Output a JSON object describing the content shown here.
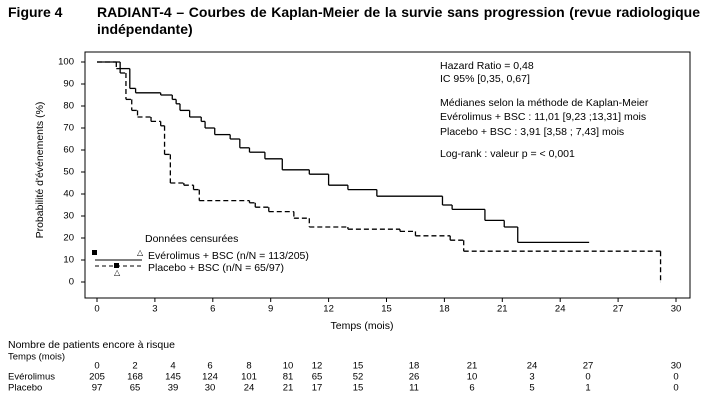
{
  "chart_data": {
    "type": "km",
    "figure_label": "Figure 4",
    "title": "RADIANT-4 – Courbes de Kaplan-Meier de la survie sans progression (revue radiologique indépendante)",
    "y_label": "Probabilité d'événements (%)",
    "x_label": "Temps (mois)",
    "xlim": [
      0,
      30
    ],
    "ylim": [
      0,
      100
    ],
    "xticks": [
      0,
      3,
      6,
      9,
      12,
      15,
      18,
      21,
      24,
      27,
      30
    ],
    "yticks": [
      0,
      10,
      20,
      30,
      40,
      50,
      60,
      70,
      80,
      90,
      100
    ],
    "annotations": [
      "Hazard Ratio = 0,48",
      "IC 95% [0,35, 0,67]",
      "Médianes selon la méthode de Kaplan-Meier",
      "Evérolimus + BSC : 11,01 [9,23 ;13,31] mois",
      "Placebo + BSC : 3,91 [3,58 ; 7,43] mois",
      "Log-rank : valeur p =  < 0,001"
    ],
    "legend_title": "Données censurées",
    "series": [
      {
        "name": "Evérolimus + BSC (n/N = 113/205)",
        "color": "#000000",
        "dash": false,
        "x": [
          0,
          1.2,
          1.7,
          2,
          3.3,
          3.9,
          4.1,
          4.3,
          4.8,
          5.4,
          5.6,
          6.1,
          6.9,
          7.4,
          7.9,
          8.7,
          9.6,
          11,
          12,
          13,
          14.5,
          17.9,
          18.4,
          20.1,
          21.1,
          21.8,
          25.5
        ],
        "values": [
          100,
          97,
          88,
          86,
          85,
          83,
          81,
          78,
          75,
          73,
          70,
          67,
          65,
          61,
          59,
          56,
          51,
          49,
          44,
          42,
          39,
          35,
          33,
          28,
          25,
          18,
          18
        ]
      },
      {
        "name": "Placebo + BSC (n/N = 65/97)",
        "color": "#000000",
        "dash": true,
        "x": [
          0,
          1,
          1.2,
          1.5,
          1.8,
          2.1,
          2.8,
          3.3,
          3.5,
          3.8,
          4.5,
          5,
          5.3,
          7.9,
          8.2,
          8.9,
          10.2,
          11,
          13,
          15.7,
          16.5,
          18.3,
          19,
          29.2
        ],
        "values": [
          100,
          97,
          95,
          83,
          78,
          75,
          73,
          71,
          58,
          45,
          44,
          42,
          37,
          36,
          34,
          32,
          29,
          25,
          24,
          23,
          21,
          19,
          14,
          0
        ]
      }
    ],
    "risk_table": {
      "title": "Nombre de patients encore à risque",
      "header_label": "Temps (mois)",
      "times": [
        0,
        2,
        4,
        6,
        8,
        10,
        12,
        15,
        18,
        21,
        24,
        27,
        30
      ],
      "rows": [
        {
          "label": "Evérolimus",
          "values": [
            205,
            168,
            145,
            124,
            101,
            81,
            65,
            52,
            26,
            10,
            3,
            0,
            0
          ]
        },
        {
          "label": "Placebo",
          "values": [
            97,
            65,
            39,
            30,
            24,
            21,
            17,
            15,
            11,
            6,
            5,
            1,
            0
          ]
        }
      ]
    }
  }
}
